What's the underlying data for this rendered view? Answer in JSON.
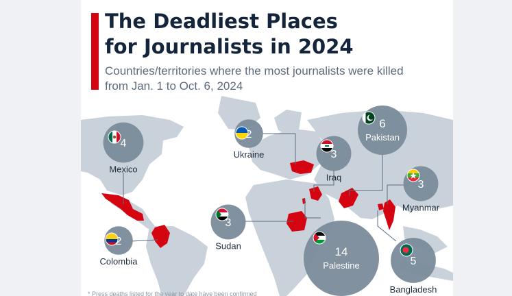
{
  "title_line1": "The Deadliest Places",
  "title_line2": "for Journalists in 2024",
  "subtitle_line1": "Countries/territories where the most journalists were killed",
  "subtitle_line2": "from Jan. 1 to Oct. 6, 2024",
  "footnote": "* Press deaths listed for the year to date have been confirmed",
  "colors": {
    "accent": "#d40511",
    "bubble": "#7a8b9b",
    "highlight_country": "#d40511",
    "map_land": "#c9d1da",
    "title": "#14253b"
  },
  "chart_data": {
    "type": "bubble-map",
    "title": "The Deadliest Places for Journalists in 2024",
    "subtitle": "Countries/territories where the most journalists were killed from Jan. 1 to Oct. 6, 2024",
    "categories": [
      "Palestine",
      "Pakistan",
      "Bangladesh",
      "Mexico",
      "Iraq",
      "Myanmar",
      "Sudan",
      "Ukraine",
      "Colombia"
    ],
    "values": [
      14,
      6,
      5,
      4,
      3,
      3,
      3,
      2,
      2
    ],
    "points": [
      {
        "name": "Mexico",
        "value": 4,
        "flag": "mexico"
      },
      {
        "name": "Colombia",
        "value": 2,
        "flag": "colombia"
      },
      {
        "name": "Ukraine",
        "value": 2,
        "flag": "ukraine"
      },
      {
        "name": "Iraq",
        "value": 3,
        "flag": "iraq"
      },
      {
        "name": "Pakistan",
        "value": 6,
        "flag": "pakistan"
      },
      {
        "name": "Myanmar",
        "value": 3,
        "flag": "myanmar"
      },
      {
        "name": "Sudan",
        "value": 3,
        "flag": "sudan"
      },
      {
        "name": "Palestine",
        "value": 14,
        "flag": "palestine"
      },
      {
        "name": "Bangladesh",
        "value": 5,
        "flag": "bangladesh"
      }
    ]
  }
}
